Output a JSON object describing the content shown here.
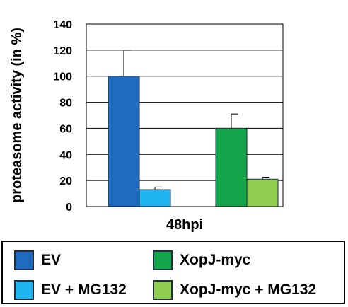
{
  "chart_data": {
    "type": "bar",
    "title": "",
    "xlabel": "48hpi",
    "ylabel": "proteasome activity (in %)",
    "ylim": [
      0,
      140
    ],
    "yticks": [
      0,
      20,
      40,
      60,
      80,
      100,
      120,
      140
    ],
    "grid": true,
    "legend_placement": "bottom",
    "series": [
      {
        "name": "EV",
        "value": 100,
        "error": 20,
        "color": "#1f6bbf"
      },
      {
        "name": "EV + MG132",
        "value": 13,
        "error": 2,
        "color": "#1eb4f0"
      },
      {
        "name": "XopJ-myc",
        "value": 60,
        "error": 11,
        "color": "#12a54a"
      },
      {
        "name": "XopJ-myc + MG132",
        "value": 21,
        "error": 1.5,
        "color": "#8fce4f"
      }
    ]
  }
}
